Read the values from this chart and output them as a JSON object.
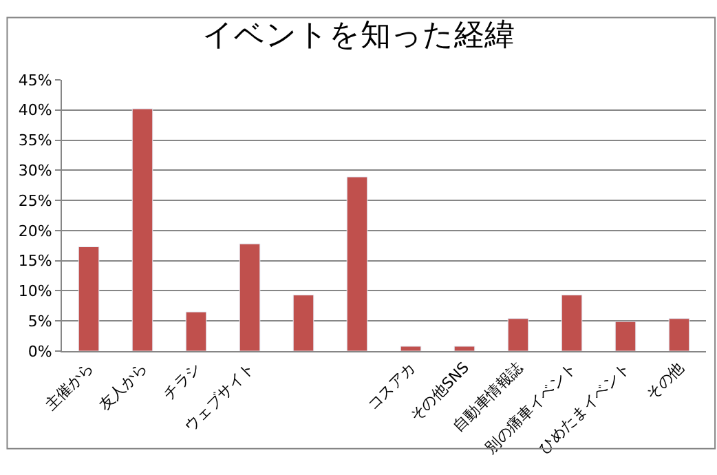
{
  "chart_data": {
    "type": "bar",
    "title": "イベントを知った経緯",
    "categories": [
      "主催から",
      "友人から",
      "チラシ",
      "ウェブサイト",
      null,
      null,
      "コスアカ",
      "その他SNS",
      "自動車情報誌",
      "別の痛車イベント",
      "ひめたまイベント",
      "その他"
    ],
    "values": [
      17.3,
      40.2,
      6.5,
      17.8,
      9.3,
      28.9,
      0.8,
      0.8,
      5.4,
      9.3,
      4.9,
      5.4
    ],
    "color": "#c0504d",
    "ylim": [
      0,
      45
    ],
    "yticks": [
      {
        "value": 0,
        "label": "0%"
      },
      {
        "value": 5,
        "label": "5%"
      },
      {
        "value": 10,
        "label": "10%"
      },
      {
        "value": 15,
        "label": "15%"
      },
      {
        "value": 20,
        "label": "20%"
      },
      {
        "value": 25,
        "label": "25%"
      },
      {
        "value": 30,
        "label": "30%"
      },
      {
        "value": 35,
        "label": "35%"
      },
      {
        "value": 40,
        "label": "40%"
      },
      {
        "value": 45,
        "label": "45%"
      }
    ],
    "grid": "y",
    "legend": false
  }
}
